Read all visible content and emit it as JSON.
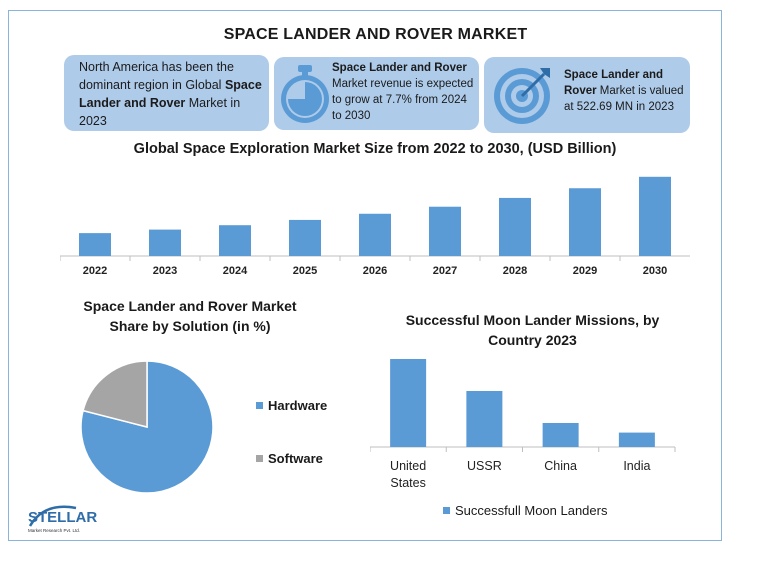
{
  "title": "SPACE LANDER AND ROVER MARKET",
  "cards": [
    {
      "pre": "North America has been the dominant region in Global ",
      "bold": "Space Lander and Rover",
      "post": " Market in 2023"
    },
    {
      "bold": "Space Lander and Rover",
      "post": " Market revenue is expected to grow at 7.7% from 2024 to 2030"
    },
    {
      "bold": "Space Lander and Rover",
      "post": " Market is valued at 522.69 MN in 2023"
    }
  ],
  "icons": {
    "card2": "stopwatch-icon",
    "card3": "target-icon"
  },
  "logo": {
    "name": "STELLAR",
    "sub": "Market Research Pvt. Ltd."
  },
  "colors": {
    "bar": "#5b9bd5",
    "software": "#a5a5a5",
    "card": "#aecbea",
    "frame": "#8ab4dc"
  },
  "chart_data": [
    {
      "type": "bar",
      "title": "Global Space Exploration Market Size from 2022 to 2030, (USD Billion)",
      "categories": [
        "2022",
        "2023",
        "2024",
        "2025",
        "2026",
        "2027",
        "2028",
        "2029",
        "2030"
      ],
      "values": [
        26,
        30,
        35,
        41,
        48,
        56,
        66,
        77,
        90
      ],
      "ylim": [
        0,
        100
      ],
      "grid": false
    },
    {
      "type": "pie",
      "title": "Space Lander and Rover Market Share by Solution (in %)",
      "labels": [
        "Hardware",
        "Software"
      ],
      "values": [
        79,
        21
      ],
      "legend": "right"
    },
    {
      "type": "bar",
      "title": "Successful Moon Lander Missions, by Country 2023",
      "categories": [
        "United States",
        "USSR",
        "China",
        "India"
      ],
      "values": [
        11,
        7,
        3,
        1.8
      ],
      "ylim": [
        0,
        12
      ],
      "legend": "bottom",
      "series": [
        {
          "name": "Successfull Moon Landers",
          "values": [
            11,
            7,
            3,
            1.8
          ]
        }
      ]
    }
  ]
}
